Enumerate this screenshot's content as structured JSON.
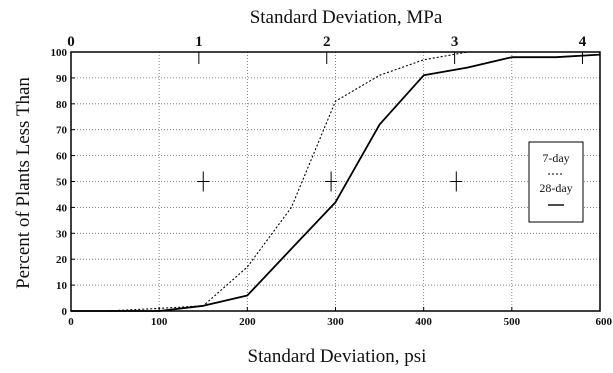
{
  "chart_data": {
    "type": "line",
    "title": "",
    "xlabel": "Standard Deviation, psi",
    "x2label": "Standard Deviation, MPa",
    "ylabel": "Percent of Plants Less Than",
    "xlim": [
      0,
      600
    ],
    "ylim": [
      0,
      100
    ],
    "x2lim": [
      0,
      4.137
    ],
    "x_ticks": [
      0,
      100,
      200,
      300,
      400,
      500,
      600
    ],
    "x2_ticks": [
      0,
      1,
      2,
      3,
      4
    ],
    "y_ticks": [
      0,
      10,
      20,
      30,
      40,
      50,
      60,
      70,
      80,
      90,
      100
    ],
    "grid": true,
    "legend_position": "right",
    "series": [
      {
        "name": "7-day",
        "style": "dotted",
        "x": [
          40,
          100,
          150,
          200,
          250,
          300,
          350,
          400,
          450
        ],
        "y": [
          0,
          1,
          2,
          17,
          40,
          81,
          91,
          97,
          100
        ]
      },
      {
        "name": "28-day",
        "style": "solid",
        "x": [
          0,
          100,
          150,
          200,
          250,
          300,
          350,
          400,
          450,
          500,
          550,
          600
        ],
        "y": [
          0,
          0,
          2,
          6,
          24,
          42,
          72,
          91,
          94,
          98,
          98,
          99
        ]
      }
    ],
    "crosshair_markers": [
      {
        "x": 150,
        "y": 50
      },
      {
        "x": 295,
        "y": 50
      },
      {
        "x": 437,
        "y": 50
      }
    ]
  }
}
